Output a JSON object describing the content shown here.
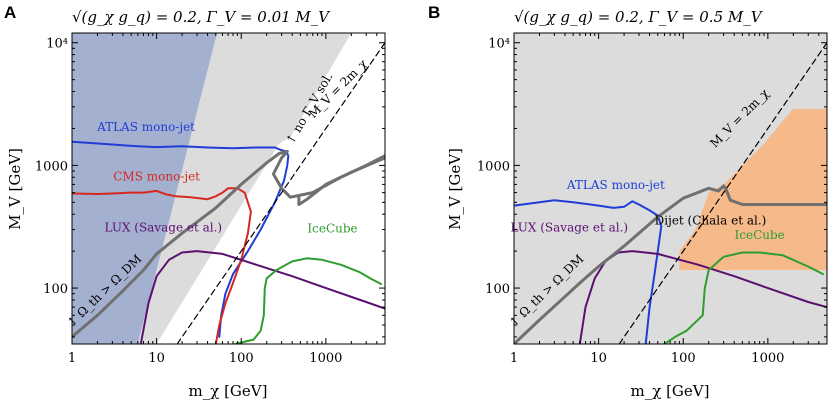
{
  "chart_data": [
    {
      "panel": "A",
      "title": "√(g_χ g_q) = 0.2, Γ_V = 0.01 M_V",
      "type": "line",
      "xlabel": "m_χ [GeV]",
      "ylabel": "M_V [GeV]",
      "xscale": "log",
      "yscale": "log",
      "xlim": [
        1,
        5000
      ],
      "ylim": [
        35,
        12000
      ],
      "xticks": [
        {
          "v": 1,
          "label": "1"
        },
        {
          "v": 10,
          "label": "10"
        },
        {
          "v": 100,
          "label": "100"
        },
        {
          "v": 1000,
          "label": "1000"
        }
      ],
      "yticks": [
        {
          "v": 100,
          "label": "100"
        },
        {
          "v": 1000,
          "label": "1000"
        },
        {
          "v": 10000,
          "label": "10⁴"
        }
      ],
      "regions": [
        {
          "name": "excluded-region",
          "color": "#a3b0d0",
          "points": [
            [
              1,
              35
            ],
            [
              1,
              12000
            ],
            [
              52,
              12000
            ],
            [
              6,
              35
            ]
          ]
        },
        {
          "name": "no-width-solution",
          "color": "#dcdcdc",
          "points": [
            [
              52,
              12000
            ],
            [
              2000,
              12000
            ],
            [
              380,
              1700
            ],
            [
              280,
              1500
            ],
            [
              10,
              35
            ],
            [
              6,
              35
            ]
          ]
        }
      ],
      "series": [
        {
          "name": "ATLAS mono-jet",
          "color": "#1f3dd6",
          "points": [
            [
              1,
              1560
            ],
            [
              3,
              1480
            ],
            [
              6,
              1430
            ],
            [
              10,
              1410
            ],
            [
              20,
              1430
            ],
            [
              40,
              1400
            ],
            [
              80,
              1380
            ],
            [
              150,
              1400
            ],
            [
              250,
              1400
            ],
            [
              300,
              1330
            ],
            [
              340,
              1300
            ],
            [
              360,
              1200
            ],
            [
              350,
              1000
            ],
            [
              320,
              750
            ],
            [
              250,
              500
            ],
            [
              170,
              300
            ],
            [
              120,
              200
            ],
            [
              80,
              130
            ],
            [
              65,
              90
            ],
            [
              58,
              60
            ],
            [
              55,
              40
            ]
          ]
        },
        {
          "name": "CMS mono-jet",
          "color": "#d6281f",
          "points": [
            [
              1,
              590
            ],
            [
              2,
              585
            ],
            [
              3,
              590
            ],
            [
              5,
              600
            ],
            [
              7,
              600
            ],
            [
              10,
              620
            ],
            [
              13,
              580
            ],
            [
              17,
              560
            ],
            [
              25,
              550
            ],
            [
              40,
              530
            ],
            [
              50,
              560
            ],
            [
              60,
              600
            ],
            [
              70,
              650
            ],
            [
              90,
              650
            ],
            [
              110,
              600
            ],
            [
              130,
              420
            ],
            [
              120,
              280
            ],
            [
              100,
              170
            ],
            [
              80,
              110
            ],
            [
              65,
              75
            ],
            [
              55,
              50
            ],
            [
              50,
              35
            ]
          ]
        },
        {
          "name": "LUX (Savage et al.)",
          "color": "#5b1070",
          "points": [
            [
              6.5,
              35
            ],
            [
              8,
              75
            ],
            [
              10,
              125
            ],
            [
              14,
              170
            ],
            [
              20,
              195
            ],
            [
              30,
              200
            ],
            [
              60,
              190
            ],
            [
              150,
              155
            ],
            [
              400,
              125
            ],
            [
              1000,
              100
            ],
            [
              3000,
              77
            ],
            [
              5000,
              68
            ]
          ]
        },
        {
          "name": "IceCube",
          "color": "#2e9e2e",
          "points": [
            [
              85,
              35
            ],
            [
              100,
              36
            ],
            [
              140,
              38
            ],
            [
              170,
              45
            ],
            [
              185,
              60
            ],
            [
              190,
              100
            ],
            [
              200,
              120
            ],
            [
              260,
              140
            ],
            [
              400,
              165
            ],
            [
              600,
              175
            ],
            [
              900,
              170
            ],
            [
              1500,
              155
            ],
            [
              2500,
              135
            ],
            [
              3500,
              118
            ],
            [
              4500,
              108
            ]
          ]
        },
        {
          "name": "relic-density",
          "color": "#707070",
          "width": 3,
          "points": [
            [
              1,
              40
            ],
            [
              2,
              60
            ],
            [
              4,
              95
            ],
            [
              7,
              140
            ],
            [
              10,
              190
            ],
            [
              20,
              280
            ],
            [
              50,
              450
            ],
            [
              100,
              700
            ],
            [
              200,
              1050
            ],
            [
              280,
              1250
            ],
            [
              350,
              1300
            ],
            [
              300,
              1150
            ],
            [
              240,
              850
            ],
            [
              300,
              650
            ],
            [
              380,
              550
            ],
            [
              700,
              600
            ],
            [
              1500,
              800
            ],
            [
              3000,
              1000
            ],
            [
              5000,
              1200
            ]
          ]
        },
        {
          "name": "relic-density-branch",
          "color": "#707070",
          "width": 3,
          "points": [
            [
              480,
              560
            ],
            [
              480,
              480
            ],
            [
              600,
              530
            ],
            [
              1000,
              700
            ],
            [
              2000,
              880
            ],
            [
              5000,
              1150
            ]
          ]
        },
        {
          "name": "M_V = 2 m_χ",
          "color": "#000000",
          "dashed": true,
          "points": [
            [
              17.5,
              35
            ],
            [
              6000,
              12000
            ]
          ]
        }
      ],
      "annotations": [
        {
          "text": "ATLAS mono-jet",
          "x": 7.5,
          "y": 1900,
          "color": "#1f3dd6"
        },
        {
          "text": "CMS mono-jet",
          "x": 10,
          "y": 750,
          "color": "#d6281f"
        },
        {
          "text": "LUX (Savage et al.)",
          "x": 12,
          "y": 290,
          "color": "#5b1070"
        },
        {
          "text": "IceCube",
          "x": 1200,
          "y": 285,
          "color": "#2e9e2e"
        },
        {
          "text": "↑ no Γ_V sol.",
          "x": 700,
          "y": 2800,
          "color": "#000000",
          "angle": -60
        },
        {
          "text": "M_V = 2m_χ",
          "x": 1500,
          "y": 4000,
          "color": "#000000",
          "angle": -45
        },
        {
          "text": "↑ Ω_th > Ω_DM",
          "x": 2.6,
          "y": 90,
          "color": "#000000",
          "angle": -44
        }
      ]
    },
    {
      "panel": "B",
      "title": "√(g_χ g_q) = 0.2, Γ_V = 0.5 M_V",
      "type": "line",
      "xlabel": "m_χ [GeV]",
      "ylabel": "M_V [GeV]",
      "xscale": "log",
      "yscale": "log",
      "xlim": [
        1,
        5000
      ],
      "ylim": [
        35,
        12000
      ],
      "xticks": [
        {
          "v": 1,
          "label": "1"
        },
        {
          "v": 10,
          "label": "10"
        },
        {
          "v": 100,
          "label": "100"
        },
        {
          "v": 1000,
          "label": "1000"
        }
      ],
      "yticks": [
        {
          "v": 100,
          "label": "100"
        },
        {
          "v": 1000,
          "label": "1000"
        },
        {
          "v": 10000,
          "label": "10⁴"
        }
      ],
      "regions": [
        {
          "name": "excluded-region",
          "color": "#dcdcdc",
          "points": [
            [
              1,
              35
            ],
            [
              1,
              12000
            ],
            [
              5000,
              12000
            ],
            [
              5000,
              35
            ]
          ]
        },
        {
          "name": "dijet-region",
          "color": "#f5b98a",
          "points": [
            [
              90,
              140
            ],
            [
              90,
              200
            ],
            [
              140,
              300
            ],
            [
              200,
              600
            ],
            [
              300,
              700
            ],
            [
              400,
              850
            ],
            [
              900,
              1500
            ],
            [
              1500,
              2300
            ],
            [
              2000,
              2900
            ],
            [
              5000,
              2900
            ],
            [
              5000,
              140
            ]
          ]
        }
      ],
      "series": [
        {
          "name": "ATLAS mono-jet",
          "color": "#1f3dd6",
          "points": [
            [
              1,
              470
            ],
            [
              2,
              500
            ],
            [
              3,
              520
            ],
            [
              5,
              500
            ],
            [
              8,
              480
            ],
            [
              10,
              470
            ],
            [
              15,
              450
            ],
            [
              20,
              460
            ],
            [
              25,
              510
            ],
            [
              30,
              480
            ],
            [
              40,
              430
            ],
            [
              50,
              390
            ],
            [
              55,
              320
            ],
            [
              50,
              200
            ],
            [
              45,
              120
            ],
            [
              40,
              70
            ],
            [
              38,
              50
            ],
            [
              36,
              35
            ]
          ]
        },
        {
          "name": "LUX (Savage et al.)",
          "color": "#5b1070",
          "points": [
            [
              6,
              35
            ],
            [
              7,
              70
            ],
            [
              9,
              120
            ],
            [
              12,
              165
            ],
            [
              17,
              195
            ],
            [
              25,
              200
            ],
            [
              50,
              190
            ],
            [
              150,
              155
            ],
            [
              400,
              125
            ],
            [
              1000,
              100
            ],
            [
              3000,
              77
            ],
            [
              5000,
              70
            ]
          ]
        },
        {
          "name": "IceCube",
          "color": "#2e9e2e",
          "points": [
            [
              60,
              35
            ],
            [
              80,
              40
            ],
            [
              110,
              45
            ],
            [
              170,
              60
            ],
            [
              180,
              100
            ],
            [
              200,
              140
            ],
            [
              300,
              180
            ],
            [
              500,
              195
            ],
            [
              800,
              195
            ],
            [
              1500,
              185
            ],
            [
              3000,
              150
            ],
            [
              4500,
              130
            ]
          ]
        },
        {
          "name": "relic-density",
          "color": "#707070",
          "width": 3,
          "points": [
            [
              1,
              35
            ],
            [
              2,
              55
            ],
            [
              4,
              85
            ],
            [
              6,
              110
            ],
            [
              10,
              150
            ],
            [
              20,
              220
            ],
            [
              50,
              380
            ],
            [
              100,
              540
            ],
            [
              200,
              650
            ],
            [
              260,
              620
            ],
            [
              300,
              680
            ],
            [
              320,
              640
            ],
            [
              360,
              520
            ],
            [
              500,
              480
            ],
            [
              1000,
              480
            ],
            [
              2000,
              480
            ],
            [
              5000,
              480
            ]
          ]
        },
        {
          "name": "M_V = 2 m_χ",
          "color": "#000000",
          "dashed": true,
          "points": [
            [
              17.5,
              35
            ],
            [
              6000,
              12000
            ]
          ]
        }
      ],
      "annotations": [
        {
          "text": "ATLAS mono-jet",
          "x": 16,
          "y": 640,
          "color": "#1f3dd6"
        },
        {
          "text": "LUX (Savage et al.)",
          "x": 4.5,
          "y": 290,
          "color": "#5b1070"
        },
        {
          "text": "Dijet (Chala et al.)",
          "x": 210,
          "y": 330,
          "color": "#000000"
        },
        {
          "text": "IceCube",
          "x": 800,
          "y": 250,
          "color": "#2e9e2e"
        },
        {
          "text": "M_V = 2m_χ",
          "x": 500,
          "y": 2300,
          "color": "#000000",
          "angle": -45
        },
        {
          "text": "↑ Ω_th > Ω_DM",
          "x": 2.6,
          "y": 90,
          "color": "#000000",
          "angle": -44
        }
      ]
    }
  ]
}
